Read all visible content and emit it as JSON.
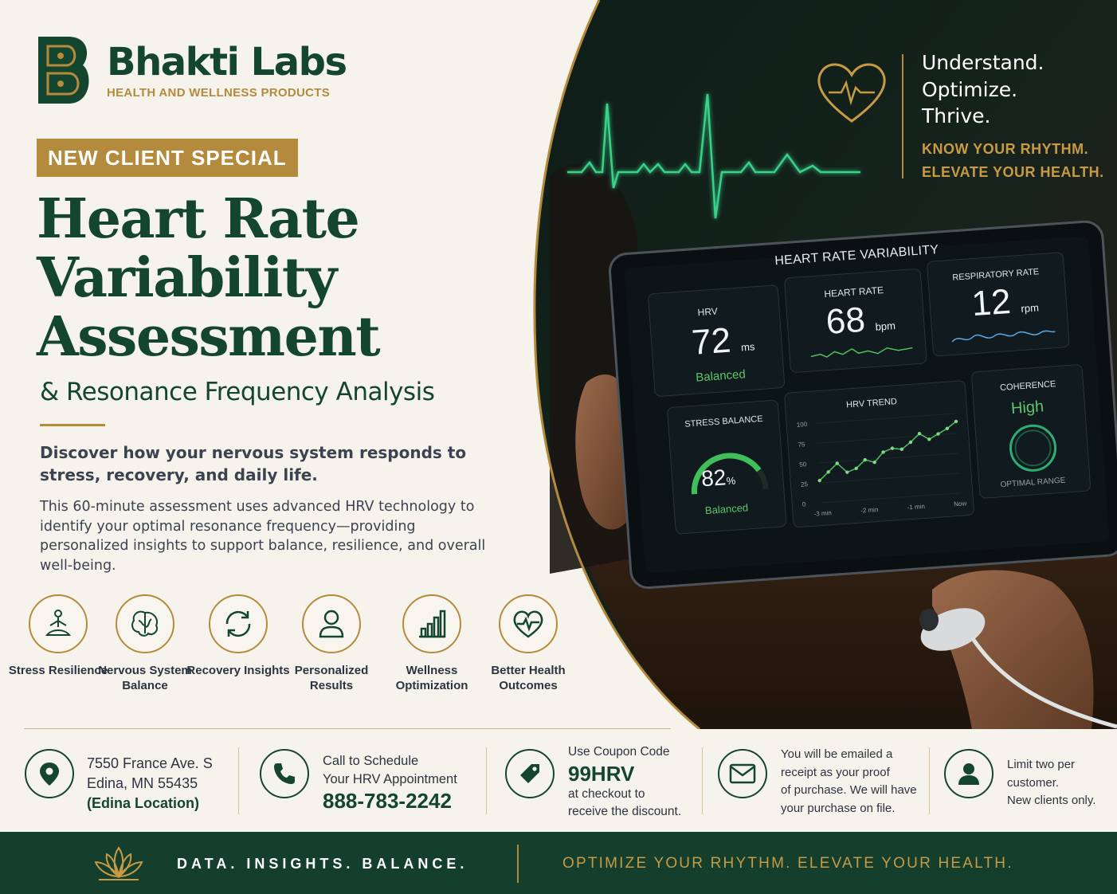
{
  "brand": {
    "name": "Bhakti Labs",
    "tagline": "HEALTH AND WELLNESS PRODUCTS"
  },
  "badge": "NEW CLIENT SPECIAL",
  "headline": {
    "line1": "Heart Rate",
    "line2": "Variability",
    "line3": "Assessment",
    "subtitle": "& Resonance Frequency Analysis"
  },
  "lead": "Discover how your nervous system responds to stress, recovery, and daily life.",
  "body": "This 60-minute assessment uses advanced HRV technology to identify your optimal resonance frequency—providing personalized insights to support balance, resilience, and overall well-being.",
  "hero": {
    "tagline_lines": [
      "Understand.",
      "Optimize.",
      "Thrive."
    ],
    "tagline2_lines": [
      "KNOW YOUR RHYTHM.",
      "ELEVATE YOUR HEALTH."
    ]
  },
  "tablet": {
    "title": "HEART RATE VARIABILITY",
    "hrv": {
      "label": "HRV",
      "value": "72",
      "unit": "ms",
      "status": "Balanced"
    },
    "heart_rate": {
      "label": "HEART RATE",
      "value": "68",
      "unit": "bpm"
    },
    "resp_rate": {
      "label": "RESPIRATORY RATE",
      "value": "12",
      "unit": "rpm"
    },
    "stress": {
      "label": "STRESS BALANCE",
      "value": "82",
      "unit": "%",
      "status": "Balanced",
      "level": 0.82
    },
    "trend": {
      "label": "HRV TREND",
      "y_ticks": [
        "100",
        "75",
        "50",
        "25",
        "0"
      ],
      "x_ticks": [
        "-3 min",
        "-2 min",
        "-1 min",
        "Now"
      ],
      "values": [
        28,
        38,
        48,
        36,
        40,
        50,
        46,
        58,
        62,
        60,
        68,
        78,
        70,
        76,
        82,
        90
      ]
    },
    "coherence": {
      "label": "COHERENCE",
      "value": "High",
      "footer": "OPTIMAL RANGE"
    }
  },
  "features": [
    {
      "icon": "meditation-icon",
      "label": "Stress Resilience"
    },
    {
      "icon": "brain-icon",
      "label": "Nervous System Balance"
    },
    {
      "icon": "refresh-icon",
      "label": "Recovery Insights"
    },
    {
      "icon": "person-icon",
      "label": "Personalized Results"
    },
    {
      "icon": "bar-chart-icon",
      "label": "Wellness Optimization"
    },
    {
      "icon": "heart-pulse-icon",
      "label": "Better Health Outcomes"
    }
  ],
  "info": {
    "address_line1": "7550 France Ave. S",
    "address_line2": "Edina, MN 55435",
    "address_line3": "(Edina Location)",
    "call_line1": "Call to Schedule",
    "call_line2": "Your HRV Appointment",
    "phone": "888-783-2242",
    "coupon_line1": "Use Coupon Code",
    "coupon_code": "99HRV",
    "coupon_line2": "at checkout to",
    "coupon_line3": "receive the discount.",
    "email_lines": [
      "You will be emailed a",
      "receipt as your proof",
      "of purchase. We will have",
      "your purchase on file."
    ],
    "limit_lines": [
      "Limit two per",
      "customer.",
      "New clients only."
    ]
  },
  "footer": {
    "left": "DATA. INSIGHTS. BALANCE.",
    "right": "OPTIMIZE YOUR RHYTHM. ELEVATE YOUR HEALTH."
  },
  "colors": {
    "green": "#14452f",
    "gold": "#b48a3c",
    "accent_green": "#5cc66a"
  }
}
